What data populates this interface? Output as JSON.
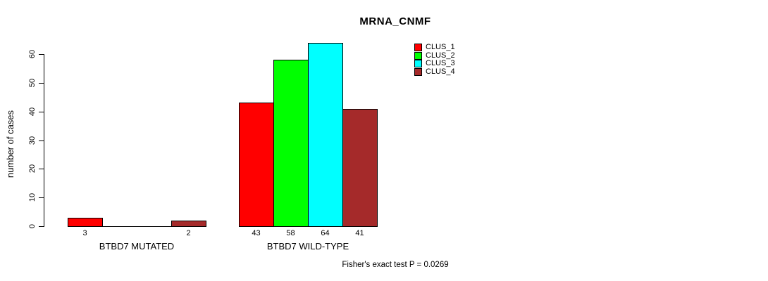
{
  "chart_data": {
    "type": "bar",
    "title": "MRNA_CNMF",
    "ylabel": "number of cases",
    "ylim": [
      0,
      64
    ],
    "yticks": [
      0,
      10,
      20,
      30,
      40,
      50,
      60
    ],
    "grid": false,
    "legend_position": "top-right-inside",
    "categories": [
      "BTBD7 MUTATED",
      "BTBD7 WILD-TYPE"
    ],
    "series": [
      {
        "name": "CLUS_1",
        "color": "#ff0000",
        "values": [
          3,
          43
        ]
      },
      {
        "name": "CLUS_2",
        "color": "#00ff00",
        "values": [
          0,
          58
        ]
      },
      {
        "name": "CLUS_3",
        "color": "#00ffff",
        "values": [
          0,
          64
        ]
      },
      {
        "name": "CLUS_4",
        "color": "#a52a2a",
        "values": [
          2,
          41
        ]
      }
    ],
    "bar_value_labels": [
      [
        "3",
        "",
        "",
        "2"
      ],
      [
        "43",
        "58",
        "64",
        "41"
      ]
    ],
    "annotation": "Fisher's exact test P = 0.0269"
  }
}
